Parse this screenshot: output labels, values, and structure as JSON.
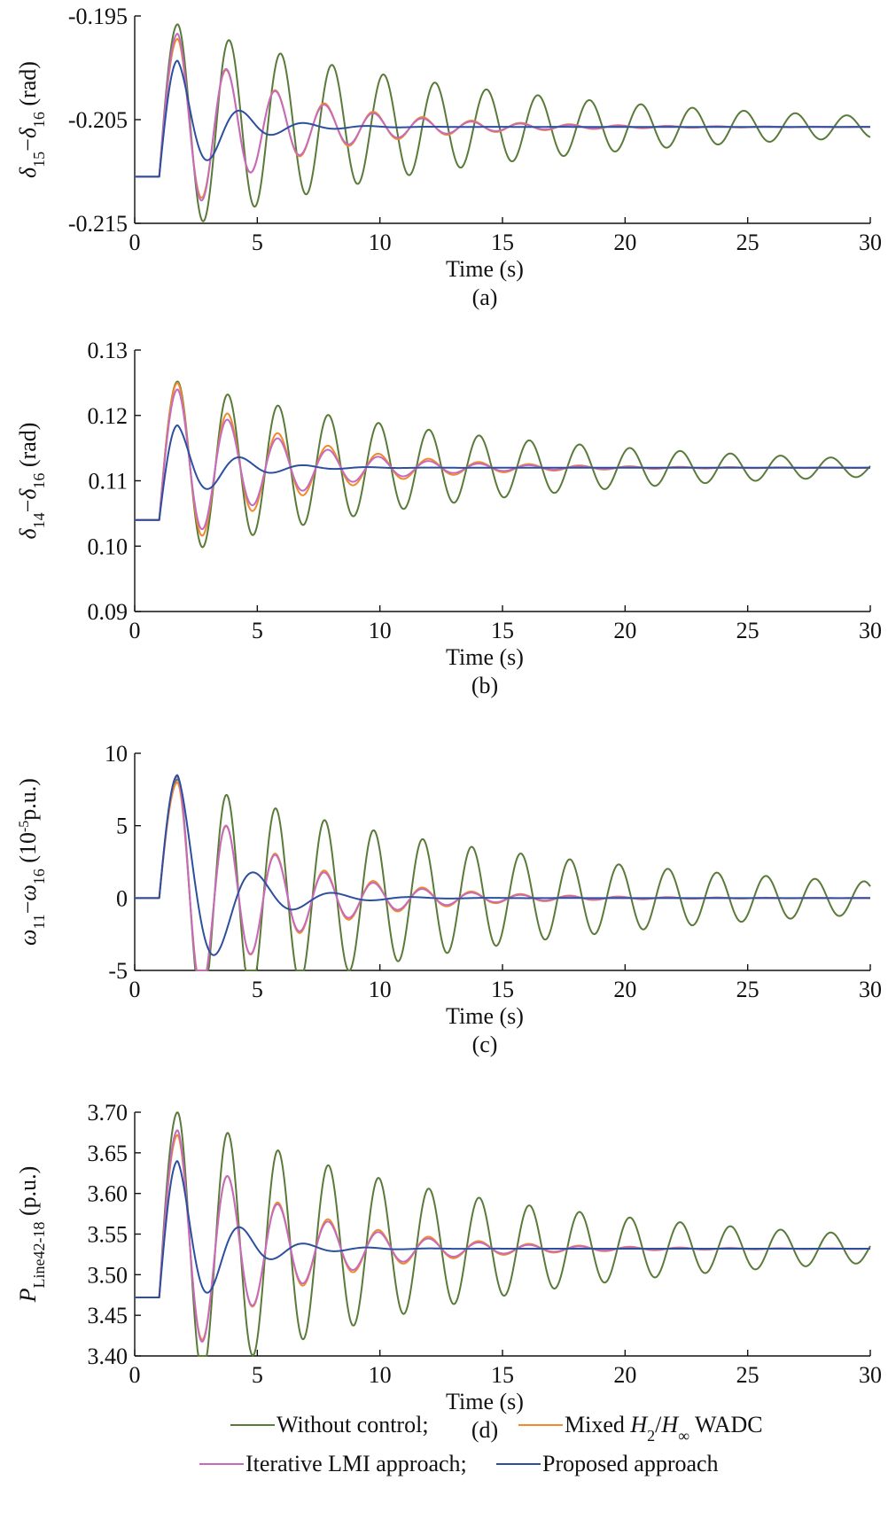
{
  "chart_data": [
    {
      "id": "a",
      "type": "line",
      "caption": "(a)",
      "xlabel": "Time (s)",
      "ylabel": "δ15−δ16 (rad)",
      "ylabel_parts": {
        "sym1": "δ",
        "sub1": "15",
        "op": "−",
        "sym2": "δ",
        "sub2": "16",
        "unit": " (rad)"
      },
      "xlim": [
        0,
        30
      ],
      "ylim": [
        -0.215,
        -0.195
      ],
      "xticks": [
        0,
        5,
        10,
        15,
        20,
        25,
        30
      ],
      "xtick_labels": [
        "0",
        "5",
        "10",
        "15",
        "20",
        "25",
        "30"
      ],
      "yticks": [
        -0.215,
        -0.205,
        -0.195
      ],
      "ytick_labels": [
        "-0.215",
        "-0.205",
        "-0.195"
      ],
      "y0": -0.2105,
      "yf": -0.2057,
      "series": [
        {
          "name": "Without control",
          "key": "without",
          "color": "#5a7a3a",
          "peak": -0.1958,
          "period": 2.1,
          "decay": 0.08,
          "phase": 0.0
        },
        {
          "name": "Mixed H2/H∞ WADC",
          "key": "mixed",
          "color": "#f08a2a",
          "peak": -0.1972,
          "period": 2.0,
          "decay": 0.22,
          "phase": 0.0
        },
        {
          "name": "Iterative LMI approach",
          "key": "lmi",
          "color": "#c46bc0",
          "peak": -0.1967,
          "period": 2.0,
          "decay": 0.24,
          "phase": 0.0
        },
        {
          "name": "Proposed approach",
          "key": "proposed",
          "color": "#2c4f9e",
          "peak": -0.1993,
          "period": 2.6,
          "decay": 0.55,
          "phase": 0.0
        }
      ]
    },
    {
      "id": "b",
      "type": "line",
      "caption": "(b)",
      "xlabel": "Time (s)",
      "ylabel": "δ14−δ16 (rad)",
      "ylabel_parts": {
        "sym1": "δ",
        "sub1": "14",
        "op": "−",
        "sym2": "δ",
        "sub2": "16",
        "unit": " (rad)"
      },
      "xlim": [
        0,
        30
      ],
      "ylim": [
        0.09,
        0.13
      ],
      "xticks": [
        0,
        5,
        10,
        15,
        20,
        25,
        30
      ],
      "xtick_labels": [
        "0",
        "5",
        "10",
        "15",
        "20",
        "25",
        "30"
      ],
      "yticks": [
        0.09,
        0.1,
        0.11,
        0.12,
        0.13
      ],
      "ytick_labels": [
        "0.09",
        "0.10",
        "0.11",
        "0.12",
        "0.13"
      ],
      "y0": 0.104,
      "yf": 0.112,
      "series": [
        {
          "name": "Without control",
          "key": "without",
          "color": "#5a7a3a",
          "peak": 0.1252,
          "period": 2.05,
          "decay": 0.08,
          "phase": 0.0
        },
        {
          "name": "Mixed H2/H∞ WADC",
          "key": "mixed",
          "color": "#f08a2a",
          "peak": 0.125,
          "period": 2.05,
          "decay": 0.22,
          "phase": 0.0
        },
        {
          "name": "Iterative LMI approach",
          "key": "lmi",
          "color": "#c46bc0",
          "peak": 0.124,
          "period": 2.05,
          "decay": 0.24,
          "phase": 0.0
        },
        {
          "name": "Proposed approach",
          "key": "proposed",
          "color": "#2c4f9e",
          "peak": 0.1185,
          "period": 2.6,
          "decay": 0.55,
          "phase": 0.0
        }
      ]
    },
    {
      "id": "c",
      "type": "line",
      "caption": "(c)",
      "xlabel": "Time (s)",
      "ylabel": "ω11−ω16 (10-5p.u.)",
      "ylabel_parts": {
        "sym1": "ω",
        "sub1": "11",
        "op": "−",
        "sym2": "ω",
        "sub2": "16",
        "unit": " (10",
        "sup": "-5",
        "unit2": "p.u.)"
      },
      "xlim": [
        0,
        30
      ],
      "ylim": [
        -5,
        10
      ],
      "xticks": [
        0,
        5,
        10,
        15,
        20,
        25,
        30
      ],
      "xtick_labels": [
        "0",
        "5",
        "10",
        "15",
        "20",
        "25",
        "30"
      ],
      "yticks": [
        -5,
        0,
        5,
        10
      ],
      "ytick_labels": [
        "-5",
        "0",
        "5",
        "10"
      ],
      "y0": 0,
      "yf": 0,
      "series": [
        {
          "name": "Without control",
          "key": "without",
          "color": "#5a7a3a",
          "peak": 8.2,
          "period": 2.0,
          "decay": 0.07,
          "phase": 0.0
        },
        {
          "name": "Mixed H2/H∞ WADC",
          "key": "mixed",
          "color": "#f08a2a",
          "peak": 8.0,
          "period": 2.0,
          "decay": 0.24,
          "phase": 0.0
        },
        {
          "name": "Iterative LMI approach",
          "key": "lmi",
          "color": "#c46bc0",
          "peak": 8.4,
          "period": 2.0,
          "decay": 0.26,
          "phase": 0.0
        },
        {
          "name": "Proposed approach",
          "key": "proposed",
          "color": "#2c4f9e",
          "peak": 8.5,
          "period": 3.2,
          "decay": 0.5,
          "phase": 0.0
        }
      ]
    },
    {
      "id": "d",
      "type": "line",
      "caption": "(d)",
      "xlabel": "Time (s)",
      "ylabel": "PLine42-18 (p.u.)",
      "ylabel_parts": {
        "sym1": "P",
        "sub1": "Line42-18",
        "op": "",
        "sym2": "",
        "sub2": "",
        "unit": " (p.u.)"
      },
      "xlim": [
        0,
        30
      ],
      "ylim": [
        3.4,
        3.7
      ],
      "xticks": [
        0,
        5,
        10,
        15,
        20,
        25,
        30
      ],
      "xtick_labels": [
        "0",
        "5",
        "10",
        "15",
        "20",
        "25",
        "30"
      ],
      "yticks": [
        3.4,
        3.45,
        3.5,
        3.55,
        3.6,
        3.65,
        3.7
      ],
      "ytick_labels": [
        "3.40",
        "3.45",
        "3.50",
        "3.55",
        "3.60",
        "3.65",
        "3.70"
      ],
      "y0": 3.472,
      "yf": 3.532,
      "series": [
        {
          "name": "Without control",
          "key": "without",
          "color": "#5a7a3a",
          "peak": 3.7,
          "period": 2.05,
          "decay": 0.08,
          "phase": 0.0
        },
        {
          "name": "Mixed H2/H∞ WADC",
          "key": "mixed",
          "color": "#f08a2a",
          "peak": 3.672,
          "period": 2.05,
          "decay": 0.22,
          "phase": 0.0
        },
        {
          "name": "Iterative LMI approach",
          "key": "lmi",
          "color": "#c46bc0",
          "peak": 3.678,
          "period": 2.05,
          "decay": 0.24,
          "phase": 0.0
        },
        {
          "name": "Proposed approach",
          "key": "proposed",
          "color": "#2c4f9e",
          "peak": 3.64,
          "period": 2.6,
          "decay": 0.55,
          "phase": 0.0
        }
      ]
    }
  ],
  "legend": {
    "placement": "bottom-center",
    "entries": [
      {
        "label": "Without control;",
        "color": "#5a7a3a"
      },
      {
        "label": "Mixed H2/H∞ WADC",
        "color": "#f08a2a",
        "math": {
          "pre": "Mixed ",
          "h": "H",
          "sub1": "2",
          "mid": "/",
          "h2": "H",
          "sub2": "∞",
          "post": " WADC"
        }
      },
      {
        "label": "Iterative LMI approach;",
        "color": "#c46bc0"
      },
      {
        "label": "Proposed approach",
        "color": "#2c4f9e"
      }
    ]
  }
}
